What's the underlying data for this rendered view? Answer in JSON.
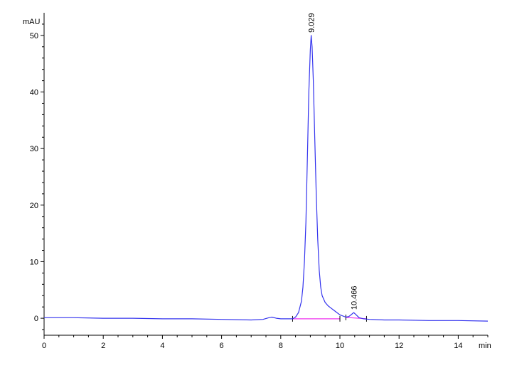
{
  "chart_data": {
    "type": "line",
    "title": "",
    "xlabel": "min",
    "ylabel": "mAU",
    "xlim": [
      0,
      15
    ],
    "ylim": [
      -3,
      53
    ],
    "x_ticks": [
      0,
      2,
      4,
      6,
      8,
      10,
      12,
      14
    ],
    "x_tick_labels": [
      "0",
      "2",
      "4",
      "6",
      "8",
      "10",
      "12",
      "14"
    ],
    "y_ticks": [
      0,
      10,
      20,
      30,
      40,
      50
    ],
    "y_tick_labels": [
      "0",
      "10",
      "20",
      "30",
      "40",
      "50"
    ],
    "grid": false,
    "series": [
      {
        "color": "#3333ee",
        "x": [
          0,
          1,
          2,
          3,
          4,
          5,
          6,
          7,
          7.4,
          7.6,
          7.7,
          7.85,
          8.0,
          8.2,
          8.4,
          8.5,
          8.6,
          8.7,
          8.75,
          8.8,
          8.85,
          8.9,
          8.95,
          9.0,
          9.029,
          9.06,
          9.1,
          9.15,
          9.2,
          9.25,
          9.3,
          9.35,
          9.4,
          9.5,
          9.6,
          9.7,
          9.8,
          9.9,
          10.0,
          10.2,
          10.3,
          10.4,
          10.466,
          10.55,
          10.65,
          10.8,
          11.0,
          11.5,
          12,
          13,
          14,
          15
        ],
        "y": [
          0.1,
          0.1,
          0.0,
          0.0,
          -0.1,
          -0.1,
          -0.2,
          -0.3,
          -0.2,
          0.1,
          0.2,
          0.0,
          -0.1,
          -0.1,
          -0.1,
          0.2,
          1.0,
          3.0,
          5.5,
          10.0,
          17.0,
          28.0,
          40.0,
          47.5,
          50.0,
          48.0,
          42.0,
          32.0,
          22.0,
          14.0,
          8.5,
          5.5,
          4.0,
          2.8,
          2.2,
          1.8,
          1.4,
          1.0,
          0.6,
          0.2,
          0.3,
          0.7,
          1.0,
          0.6,
          0.1,
          -0.1,
          -0.2,
          -0.3,
          -0.3,
          -0.4,
          -0.4,
          -0.5
        ]
      }
    ],
    "baselines": [
      {
        "color": "#ee33ee",
        "x": [
          8.4,
          10.0
        ],
        "y": [
          -0.1,
          -0.1
        ]
      },
      {
        "color": "#ee33ee",
        "x": [
          10.2,
          10.9
        ],
        "y": [
          0.15,
          -0.1
        ]
      }
    ],
    "annotations": [
      {
        "text": "9.029",
        "x": 9.029,
        "y": 50.0
      },
      {
        "text": "10.466",
        "x": 10.466,
        "y": 1.0
      }
    ]
  }
}
